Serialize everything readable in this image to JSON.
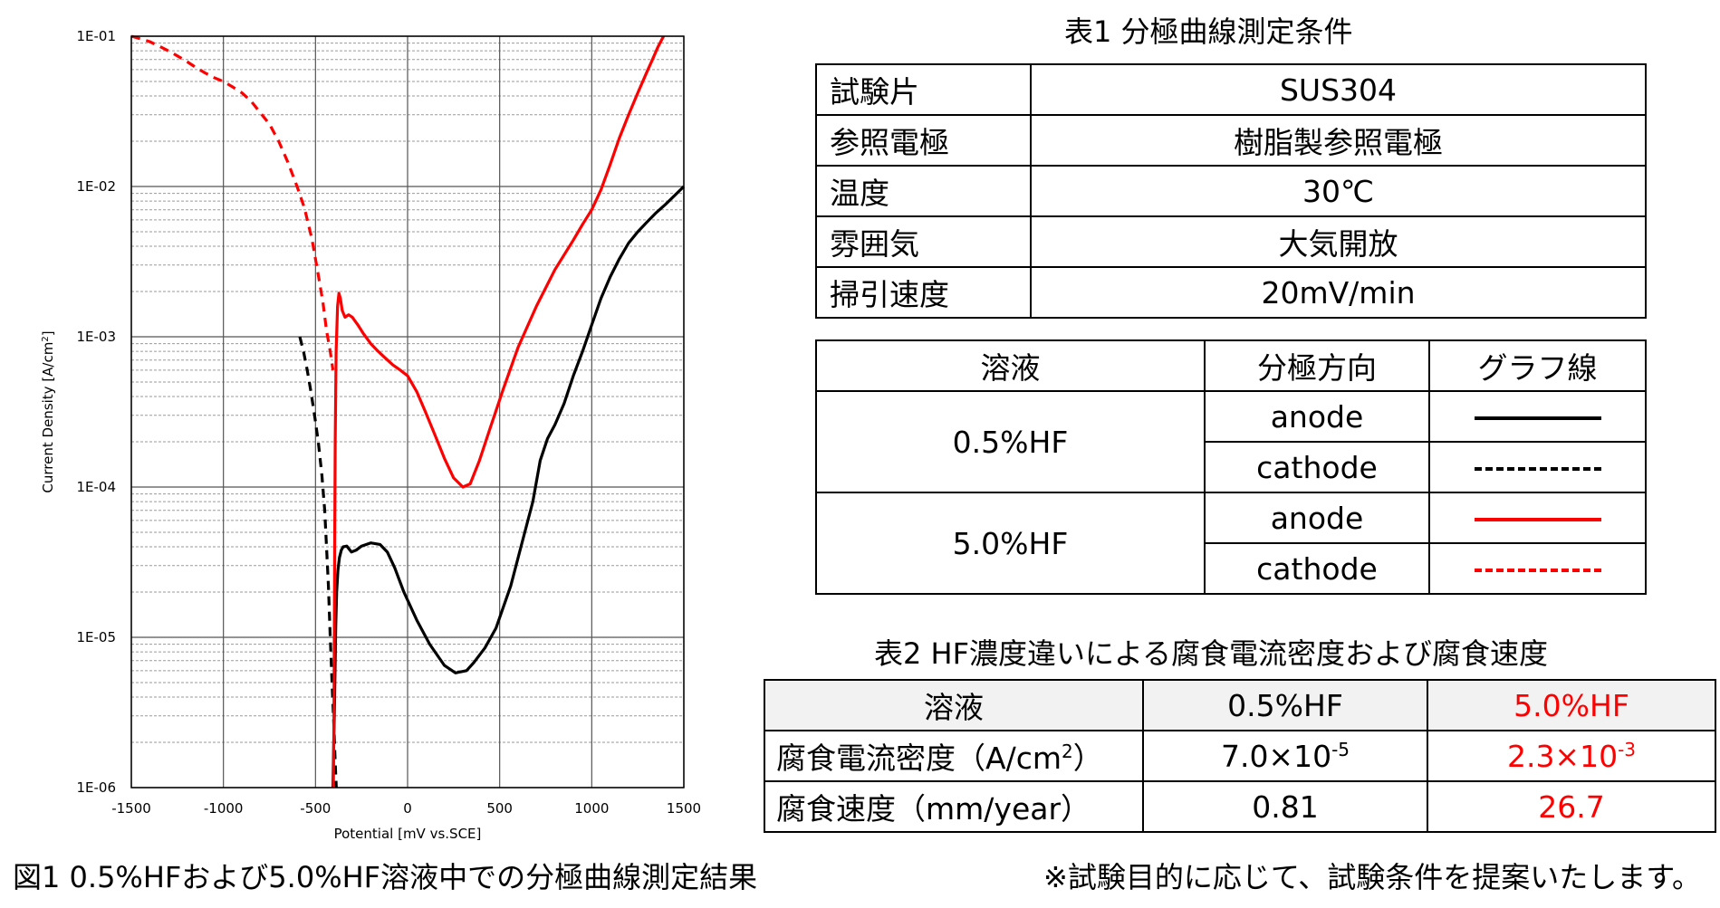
{
  "chart_data": {
    "type": "line",
    "title": "",
    "xlabel": "Potential [mV vs.SCE]",
    "ylabel": "Current Density [A/cm",
    "ylabel_sup": "2",
    "ylabel_end": "]",
    "xlim": [
      -1500,
      1500
    ],
    "ylim": [
      1e-06,
      0.1
    ],
    "y_scale": "log",
    "grid": true,
    "x_ticks": [
      "-1500",
      "-1000",
      "-500",
      "0",
      "500",
      "1000",
      "1500"
    ],
    "y_ticks": [
      "1E-01",
      "1E-02",
      "1E-03",
      "1E-04",
      "1E-05",
      "1E-06"
    ],
    "series": [
      {
        "color": "#000000",
        "dash": "solid",
        "x": [
          -405,
          -403,
          -398,
          -394,
          -390,
          -385,
          -378,
          -370,
          -360,
          -350,
          -330,
          -305,
          -280,
          -250,
          -200,
          -150,
          -110,
          -70,
          -20,
          50,
          120,
          200,
          260,
          320,
          360,
          420,
          480,
          560,
          620,
          680,
          720,
          760,
          800,
          850,
          900,
          950,
          1000,
          1050,
          1100,
          1150,
          1200,
          1250,
          1300,
          1350,
          1400,
          1450,
          1500
        ],
        "y": [
          1e-06,
          1.5e-06,
          3e-06,
          6e-06,
          1.2e-05,
          2e-05,
          2.8e-05,
          3.4e-05,
          3.8e-05,
          4e-05,
          4.05e-05,
          3.7e-05,
          3.8e-05,
          4.05e-05,
          4.25e-05,
          4.15e-05,
          3.7e-05,
          2.9e-05,
          2e-05,
          1.3e-05,
          9e-06,
          6.5e-06,
          5.8e-06,
          6e-06,
          6.8e-06,
          8.5e-06,
          1.15e-05,
          2.2e-05,
          4.2e-05,
          8e-05,
          0.00015,
          0.00021,
          0.00026,
          0.00036,
          0.00055,
          0.0008,
          0.0012,
          0.0018,
          0.0025,
          0.0033,
          0.0042,
          0.005,
          0.0058,
          0.0067,
          0.0076,
          0.0087,
          0.01
        ]
      },
      {
        "color": "#000000",
        "dash": "dashed",
        "x": [
          -585,
          -565,
          -545,
          -525,
          -505,
          -485,
          -465,
          -450,
          -440,
          -430,
          -420,
          -410,
          -400,
          -395,
          -390,
          -387
        ],
        "y": [
          0.001,
          0.0008,
          0.0006,
          0.00043,
          0.0003,
          0.0002,
          0.00012,
          7e-05,
          4e-05,
          2.2e-05,
          1e-05,
          5e-06,
          2.5e-06,
          1.7e-06,
          1.2e-06,
          1e-06
        ]
      },
      {
        "color": "#ff0000",
        "dash": "solid",
        "x": [
          -403,
          -400,
          -398,
          -396,
          -393,
          -388,
          -380,
          -373,
          -365,
          -355,
          -340,
          -320,
          -300,
          -270,
          -240,
          -200,
          -160,
          -120,
          -80,
          -40,
          0,
          50,
          100,
          150,
          200,
          250,
          300,
          340,
          390,
          450,
          520,
          600,
          700,
          800,
          900,
          950,
          1000,
          1050,
          1100,
          1150,
          1200,
          1250,
          1300,
          1330,
          1360,
          1390
        ],
        "y": [
          1e-06,
          3e-06,
          1e-05,
          4e-05,
          0.0002,
          0.0008,
          0.0016,
          0.00195,
          0.0018,
          0.0015,
          0.00135,
          0.0014,
          0.00135,
          0.0012,
          0.00105,
          0.0009,
          0.0008,
          0.00072,
          0.00065,
          0.0006,
          0.00055,
          0.00043,
          0.00031,
          0.00022,
          0.000155,
          0.000115,
          0.0001,
          0.000105,
          0.00015,
          0.00025,
          0.00045,
          0.00085,
          0.0016,
          0.0028,
          0.0044,
          0.0056,
          0.007,
          0.0095,
          0.014,
          0.021,
          0.03,
          0.042,
          0.058,
          0.07,
          0.085,
          0.1
        ]
      },
      {
        "color": "#ff0000",
        "dash": "dashed",
        "x": [
          -1500,
          -1450,
          -1400,
          -1350,
          -1300,
          -1250,
          -1200,
          -1150,
          -1100,
          -1050,
          -1000,
          -950,
          -900,
          -850,
          -800,
          -750,
          -700,
          -650,
          -600,
          -560,
          -520,
          -490,
          -460,
          -440,
          -420,
          -405
        ],
        "y": [
          0.1,
          0.096,
          0.092,
          0.086,
          0.08,
          0.074,
          0.068,
          0.062,
          0.057,
          0.053,
          0.05,
          0.046,
          0.042,
          0.037,
          0.031,
          0.026,
          0.02,
          0.0145,
          0.01,
          0.0072,
          0.0045,
          0.0028,
          0.0017,
          0.0011,
          0.0008,
          0.0006
        ]
      }
    ]
  },
  "table1": {
    "title": "表1  分極曲線測定条件",
    "rows": [
      {
        "label": "試験片",
        "value": "SUS304"
      },
      {
        "label": "参照電極",
        "value": "樹脂製参照電極"
      },
      {
        "label": "温度",
        "value": "30℃"
      },
      {
        "label": "雰囲気",
        "value": "大気開放"
      },
      {
        "label": "掃引速度",
        "value": "20mV/min"
      }
    ]
  },
  "table_legend": {
    "headers": [
      "溶液",
      "分極方向",
      "グラフ線"
    ],
    "groups": [
      {
        "solution": "0.5%HF",
        "rows": [
          {
            "direction": "anode",
            "line_color": "#000000",
            "line_style": "solid"
          },
          {
            "direction": "cathode",
            "line_color": "#000000",
            "line_style": "dashed"
          }
        ]
      },
      {
        "solution": "5.0%HF",
        "rows": [
          {
            "direction": "anode",
            "line_color": "#ff0000",
            "line_style": "solid"
          },
          {
            "direction": "cathode",
            "line_color": "#ff0000",
            "line_style": "dashed"
          }
        ]
      }
    ]
  },
  "table2": {
    "title": "表2  HF濃度違いによる腐食電流密度および腐食速度",
    "header": {
      "label": "溶液",
      "col1": "0.5%HF",
      "col2": "5.0%HF"
    },
    "row_current": {
      "label": "腐食電流密度（A/cm",
      "label_sup": "2",
      "label_end": "）",
      "col1_base": "7.0×10",
      "col1_exp": "-5",
      "col2_base": "2.3×10",
      "col2_exp": "-3"
    },
    "row_rate": {
      "label": "腐食速度（mm/year）",
      "col1": "0.81",
      "col2": "26.7"
    },
    "highlight_color": "#ff0000"
  },
  "captions": {
    "figure": "図1  0.5%HFおよび5.0%HF溶液中での分極曲線測定結果",
    "note": "※試験目的に応じて、試験条件を提案いたします。"
  }
}
